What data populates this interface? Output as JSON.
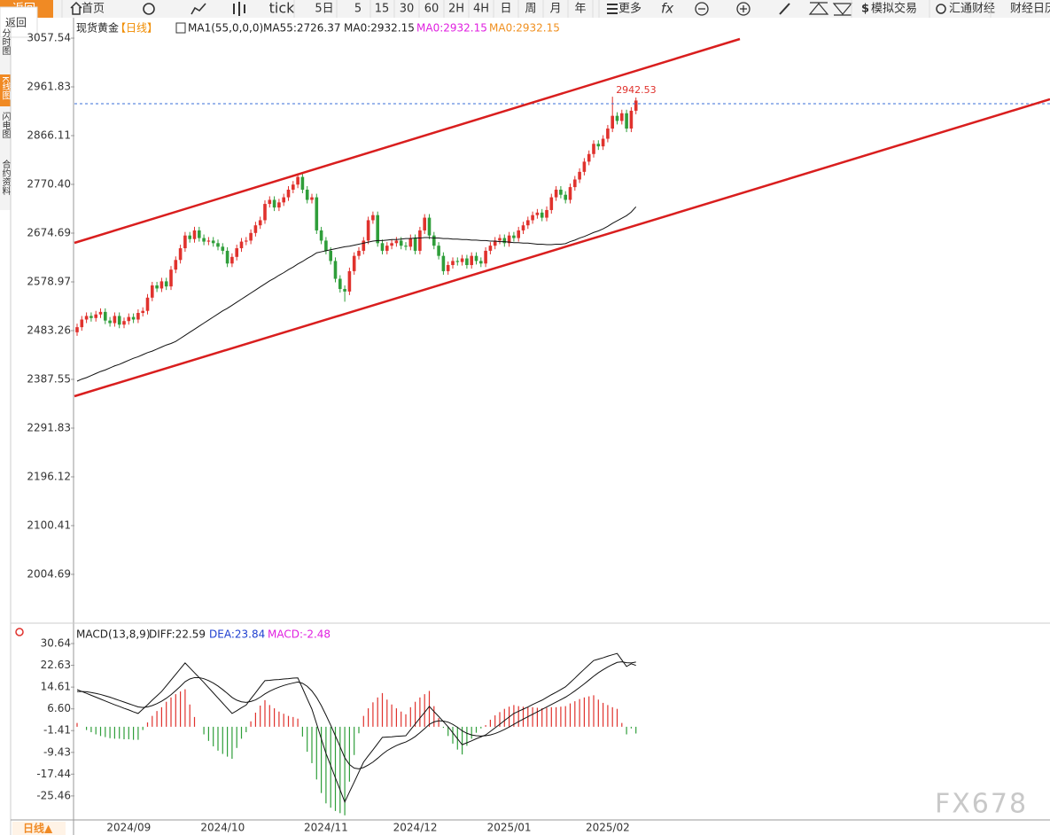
{
  "toolbar": {
    "back": "返回",
    "items": [
      "返回",
      "首页",
      "tick",
      "5日",
      "5",
      "15",
      "30",
      "60",
      "2H",
      "4H",
      "日",
      "周",
      "月",
      "年",
      "更多",
      "模拟交易",
      "汇通财经",
      "财经日历"
    ]
  },
  "sidebar": {
    "tabs": [
      "分时图",
      "K线图",
      "闪电图",
      "合约资料"
    ]
  },
  "bottom_tab": "日线▲",
  "watermark": "FX678",
  "chart_data": [
    {
      "type": "candlestick",
      "header": [
        "现货黄金",
        "【日线】",
        "MA1(55,0,0,0)",
        "MA55:2726.37",
        "MA0:2932.15",
        "MA0:2932.15",
        "MA0:2932.15"
      ],
      "header_colors": [
        "#222222",
        "#f08c00",
        "#222222",
        "#222222",
        "#222222",
        "#e020e0",
        "#f09020"
      ],
      "up_color": "#e0322d",
      "down_color": "#2f9e3a",
      "ma55_color": "#111111",
      "label_color": "#e0322d",
      "categories": [
        null,
        null,
        null,
        null,
        null,
        null,
        null,
        null,
        null,
        null,
        null,
        "2024/09",
        null,
        null,
        null,
        null,
        null,
        null,
        null,
        null,
        null,
        null,
        null,
        null,
        null,
        null,
        null,
        null,
        null,
        null,
        null,
        "2024/10",
        null,
        null,
        null,
        null,
        null,
        null,
        null,
        null,
        null,
        null,
        null,
        null,
        null,
        null,
        null,
        null,
        null,
        null,
        null,
        null,
        null,
        "2024/11",
        null,
        null,
        null,
        null,
        null,
        null,
        null,
        null,
        null,
        null,
        null,
        null,
        null,
        null,
        null,
        null,
        null,
        null,
        "2024/12",
        null,
        null,
        null,
        null,
        null,
        null,
        null,
        null,
        null,
        null,
        null,
        null,
        null,
        null,
        null,
        null,
        null,
        null,
        null,
        "2025/01",
        null,
        null,
        null,
        null,
        null,
        null,
        null,
        null,
        null,
        null,
        null,
        null,
        null,
        null,
        null,
        null,
        null,
        null,
        null,
        null,
        "2025/02",
        null,
        null,
        null,
        null,
        null,
        null
      ],
      "open": [
        2480,
        2490,
        2505,
        2512,
        2508,
        2515,
        2520,
        2503,
        2498,
        2512,
        2495,
        2502,
        2510,
        2505,
        2518,
        2522,
        2548,
        2572,
        2566,
        2580,
        2570,
        2603,
        2622,
        2645,
        2670,
        2663,
        2680,
        2665,
        2658,
        2660,
        2655,
        2648,
        2640,
        2615,
        2628,
        2645,
        2658,
        2660,
        2675,
        2690,
        2700,
        2732,
        2740,
        2725,
        2735,
        2745,
        2760,
        2770,
        2785,
        2760,
        2740,
        2745,
        2680,
        2660,
        2640,
        2620,
        2585,
        2565,
        2560,
        2600,
        2630,
        2640,
        2660,
        2700,
        2710,
        2655,
        2640,
        2650,
        2655,
        2660,
        2650,
        2648,
        2665,
        2640,
        2680,
        2705,
        2670,
        2650,
        2630,
        2600,
        2612,
        2620,
        2618,
        2625,
        2612,
        2630,
        2620,
        2615,
        2640,
        2650,
        2660,
        2665,
        2655,
        2670,
        2665,
        2680,
        2690,
        2700,
        2710,
        2715,
        2705,
        2720,
        2745,
        2760,
        2750,
        2740,
        2765,
        2780,
        2795,
        2815,
        2830,
        2850,
        2845,
        2860,
        2880,
        2905,
        2895,
        2910,
        2880,
        2915
      ],
      "high": [
        2497,
        2512,
        2519,
        2519,
        2522,
        2527,
        2527,
        2510,
        2519,
        2519,
        2509,
        2517,
        2517,
        2525,
        2529,
        2555,
        2579,
        2579,
        2587,
        2587,
        2610,
        2629,
        2652,
        2677,
        2677,
        2687,
        2687,
        2672,
        2667,
        2667,
        2662,
        2655,
        2647,
        2635,
        2652,
        2665,
        2667,
        2682,
        2697,
        2707,
        2739,
        2747,
        2747,
        2742,
        2752,
        2767,
        2777,
        2792,
        2792,
        2767,
        2752,
        2752,
        2687,
        2667,
        2647,
        2627,
        2592,
        2572,
        2607,
        2637,
        2647,
        2667,
        2707,
        2717,
        2717,
        2662,
        2657,
        2662,
        2667,
        2667,
        2657,
        2672,
        2672,
        2687,
        2712,
        2712,
        2677,
        2657,
        2637,
        2619,
        2627,
        2627,
        2632,
        2632,
        2637,
        2637,
        2627,
        2647,
        2657,
        2667,
        2672,
        2672,
        2677,
        2677,
        2687,
        2697,
        2707,
        2717,
        2722,
        2722,
        2727,
        2752,
        2767,
        2767,
        2757,
        2772,
        2787,
        2802,
        2822,
        2837,
        2857,
        2857,
        2867,
        2887,
        2942.53,
        2912,
        2917,
        2917,
        2922,
        2941
      ],
      "low": [
        2473,
        2483,
        2498,
        2501,
        2501,
        2508,
        2496,
        2491,
        2491,
        2488,
        2488,
        2495,
        2498,
        2498,
        2511,
        2515,
        2541,
        2559,
        2559,
        2563,
        2563,
        2596,
        2615,
        2638,
        2656,
        2656,
        2658,
        2651,
        2651,
        2648,
        2641,
        2633,
        2608,
        2608,
        2621,
        2638,
        2651,
        2653,
        2668,
        2683,
        2693,
        2725,
        2718,
        2718,
        2728,
        2738,
        2753,
        2763,
        2753,
        2733,
        2733,
        2673,
        2653,
        2633,
        2613,
        2578,
        2558,
        2540,
        2553,
        2593,
        2623,
        2633,
        2653,
        2693,
        2648,
        2633,
        2633,
        2643,
        2648,
        2643,
        2641,
        2641,
        2633,
        2633,
        2673,
        2663,
        2643,
        2623,
        2593,
        2593,
        2605,
        2611,
        2611,
        2605,
        2605,
        2613,
        2608,
        2608,
        2633,
        2643,
        2653,
        2648,
        2648,
        2658,
        2658,
        2673,
        2683,
        2693,
        2703,
        2698,
        2698,
        2713,
        2738,
        2743,
        2733,
        2733,
        2758,
        2773,
        2788,
        2808,
        2823,
        2838,
        2838,
        2853,
        2873,
        2888,
        2888,
        2873,
        2873,
        2908
      ],
      "close": [
        2490,
        2505,
        2512,
        2508,
        2515,
        2520,
        2503,
        2498,
        2512,
        2495,
        2502,
        2510,
        2505,
        2518,
        2522,
        2548,
        2572,
        2566,
        2580,
        2570,
        2603,
        2622,
        2645,
        2670,
        2663,
        2680,
        2665,
        2658,
        2660,
        2655,
        2648,
        2640,
        2615,
        2628,
        2645,
        2658,
        2660,
        2675,
        2690,
        2700,
        2732,
        2740,
        2725,
        2735,
        2745,
        2760,
        2770,
        2785,
        2760,
        2740,
        2745,
        2680,
        2660,
        2640,
        2620,
        2585,
        2565,
        2560,
        2600,
        2630,
        2640,
        2660,
        2700,
        2710,
        2655,
        2640,
        2650,
        2655,
        2660,
        2650,
        2648,
        2665,
        2640,
        2680,
        2705,
        2670,
        2650,
        2630,
        2600,
        2612,
        2620,
        2618,
        2625,
        2612,
        2630,
        2620,
        2615,
        2640,
        2650,
        2660,
        2665,
        2655,
        2670,
        2665,
        2680,
        2690,
        2700,
        2710,
        2715,
        2705,
        2720,
        2745,
        2760,
        2750,
        2740,
        2765,
        2780,
        2795,
        2815,
        2830,
        2850,
        2845,
        2860,
        2880,
        2905,
        2895,
        2910,
        2880,
        2915,
        2935
      ],
      "ma55": [
        2384,
        2388,
        2391,
        2395,
        2399,
        2403,
        2406,
        2410,
        2414,
        2417,
        2421,
        2425,
        2429,
        2432,
        2436,
        2440,
        2443,
        2447,
        2451,
        2455,
        2458,
        2462,
        2468,
        2474,
        2480,
        2486,
        2492,
        2498,
        2504,
        2510,
        2516,
        2522,
        2527,
        2533,
        2539,
        2545,
        2551,
        2557,
        2563,
        2569,
        2575,
        2581,
        2586,
        2592,
        2597,
        2603,
        2608,
        2614,
        2619,
        2625,
        2630,
        2636,
        2638,
        2640,
        2642,
        2644,
        2646,
        2648,
        2649,
        2651,
        2653,
        2655,
        2657,
        2659,
        2660,
        2660,
        2661,
        2662,
        2662,
        2663,
        2664,
        2664,
        2665,
        2665,
        2666,
        2666,
        2665,
        2665,
        2664,
        2664,
        2663,
        2663,
        2662,
        2662,
        2661,
        2661,
        2660,
        2660,
        2659,
        2659,
        2658,
        2658,
        2657,
        2656,
        2656,
        2655,
        2655,
        2654,
        2653,
        2653,
        2652,
        2652,
        2653,
        2653,
        2654,
        2658,
        2661,
        2665,
        2668,
        2672,
        2676,
        2679,
        2683,
        2688,
        2694,
        2699,
        2704,
        2709,
        2716,
        2726.37
      ],
      "ylim": [
        1914.1,
        3071.5
      ],
      "yticks": [
        3057.54,
        2961.83,
        2866.11,
        {
          "value": 2770.4,
          "label": "2770.40"
        },
        2674.69,
        2578.97,
        2483.26,
        2387.55,
        2291.83,
        2196.12,
        2100.41,
        2004.69
      ]
    },
    {
      "type": "macd",
      "header": [
        "MACD(13,8,9)",
        "DIFF:22.59",
        "DEA:23.84",
        "MACD:-2.48"
      ],
      "header_colors": [
        "#222222",
        "#222222",
        "#2040d0",
        "#e020e0"
      ],
      "diff_color": "#111111",
      "dea_color": "#111111",
      "up_color": "#e0322d",
      "down_color": "#2f9e3a",
      "diff": [
        13.7,
        13.0,
        12.3,
        11.6,
        10.9,
        10.2,
        9.5,
        8.8,
        8.1,
        7.5,
        6.8,
        6.2,
        5.5,
        4.9,
        6.5,
        8.1,
        9.8,
        11.4,
        13.0,
        15.1,
        17.2,
        19.3,
        21.4,
        23.5,
        21.7,
        19.9,
        18.1,
        16.3,
        14.4,
        12.5,
        10.6,
        8.7,
        6.8,
        4.9,
        5.9,
        7.0,
        8.0,
        10.3,
        12.5,
        14.8,
        17.0,
        17.1,
        17.3,
        17.4,
        17.6,
        17.7,
        17.9,
        18.0,
        14.2,
        10.3,
        6.5,
        1.1,
        -4.4,
        -9.8,
        -14.3,
        -18.8,
        -23.2,
        -27.7,
        -24.0,
        -20.4,
        -16.7,
        -13.0,
        -10.7,
        -8.5,
        -6.2,
        -3.9,
        -3.8,
        -3.7,
        -3.5,
        -3.4,
        -3.3,
        -1.1,
        1.0,
        3.2,
        5.3,
        7.5,
        5.6,
        3.8,
        1.9,
        0.0,
        -2.2,
        -4.4,
        -6.6,
        -5.9,
        -5.2,
        -4.4,
        -3.7,
        -3.0,
        -1.7,
        -0.4,
        0.9,
        2.3,
        3.6,
        4.9,
        5.7,
        6.5,
        7.3,
        8.2,
        9.0,
        9.8,
        10.8,
        11.8,
        12.7,
        13.7,
        14.7,
        16.3,
        17.9,
        19.6,
        21.2,
        22.8,
        24.4,
        24.9,
        25.4,
        26.0,
        26.5,
        27.0,
        24.6,
        22.2,
        23.2,
        22.59
      ],
      "dea": [
        13.0,
        13.0,
        12.9,
        12.6,
        12.3,
        11.9,
        11.4,
        10.9,
        10.3,
        9.7,
        9.1,
        8.5,
        7.9,
        7.3,
        7.1,
        7.3,
        7.8,
        8.5,
        9.4,
        10.5,
        11.8,
        13.3,
        14.9,
        16.6,
        17.6,
        18.1,
        18.1,
        17.7,
        17.0,
        16.1,
        15.0,
        13.7,
        12.3,
        10.8,
        9.8,
        9.2,
        9.0,
        9.3,
        9.9,
        10.9,
        12.1,
        13.1,
        13.9,
        14.6,
        15.2,
        15.7,
        16.1,
        16.5,
        16.0,
        14.9,
        13.2,
        10.8,
        7.8,
        4.3,
        0.6,
        -3.3,
        -7.3,
        -11.4,
        -13.9,
        -15.2,
        -15.5,
        -15.0,
        -14.1,
        -13.0,
        -11.6,
        -10.1,
        -8.8,
        -7.8,
        -6.9,
        -6.2,
        -5.6,
        -4.7,
        -3.6,
        -2.2,
        -0.7,
        0.9,
        1.8,
        2.2,
        2.1,
        1.7,
        0.9,
        -0.2,
        -1.5,
        -2.4,
        -3.0,
        -3.3,
        -3.4,
        -3.3,
        -3.0,
        -2.5,
        -1.8,
        -1.0,
        -0.1,
        0.9,
        1.9,
        2.8,
        3.7,
        4.6,
        5.5,
        6.4,
        7.3,
        8.2,
        9.1,
        10.0,
        10.9,
        12.0,
        13.2,
        14.5,
        15.8,
        17.2,
        18.6,
        19.9,
        21.0,
        22.0,
        22.9,
        23.7,
        23.9,
        23.6,
        23.5,
        23.84
      ],
      "hist": [
        1.4,
        0,
        -1.2,
        -2.0,
        -2.8,
        -3.4,
        -3.8,
        -4.2,
        -4.4,
        -4.4,
        -4.6,
        -4.6,
        -4.8,
        -4.8,
        -1.2,
        1.6,
        4.0,
        5.8,
        7.2,
        9.2,
        10.8,
        12.0,
        13.0,
        13.8,
        8.2,
        3.6,
        0,
        -2.8,
        -5.2,
        -7.2,
        -8.8,
        -10.0,
        -11.0,
        -11.8,
        -7.8,
        -4.4,
        -2.0,
        2.0,
        5.2,
        7.8,
        9.8,
        8.0,
        6.8,
        5.6,
        4.8,
        4.0,
        3.6,
        3.0,
        -3.6,
        -9.2,
        -13.4,
        -19.4,
        -24.4,
        -28.2,
        -29.8,
        -31.0,
        -31.8,
        -32.6,
        -20.2,
        -10.4,
        -2.4,
        4.0,
        6.8,
        9.0,
        10.8,
        12.4,
        10.0,
        8.2,
        6.8,
        5.6,
        4.6,
        7.2,
        9.2,
        10.8,
        12.0,
        13.2,
        7.6,
        3.2,
        -0.4,
        -3.4,
        -6.2,
        -8.4,
        -10.2,
        -7.0,
        -4.4,
        -2.2,
        -0.6,
        0.6,
        2.6,
        4.2,
        5.4,
        6.6,
        7.4,
        8.0,
        7.6,
        7.4,
        7.2,
        7.2,
        7.0,
        6.8,
        7.0,
        7.2,
        7.2,
        7.4,
        7.6,
        8.6,
        9.4,
        10.2,
        10.8,
        11.2,
        11.6,
        10.0,
        8.8,
        8.0,
        7.2,
        6.6,
        1.4,
        -2.8,
        -0.6,
        -2.48
      ],
      "ylim": [
        -34.3,
        37.5
      ],
      "yticks": [
        30.64,
        22.63,
        14.61,
        {
          "value": 6.6,
          "label": "6.60"
        },
        -1.41,
        -9.43,
        -17.44,
        -25.46
      ]
    }
  ]
}
